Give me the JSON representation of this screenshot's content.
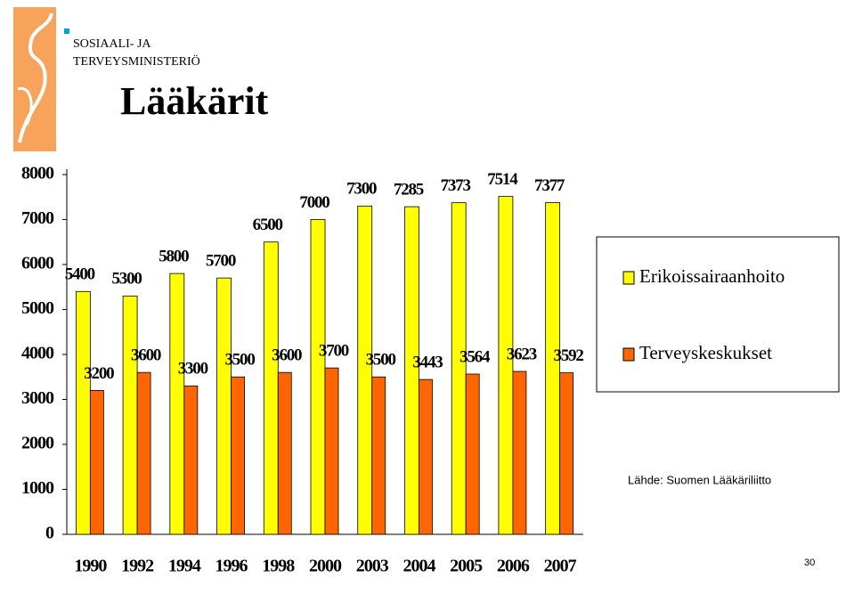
{
  "header": {
    "org_line1": "SOSIAALI- JA",
    "org_line2": "TERVEYSMINISTERIÖ"
  },
  "source": "Lähde: Suomen Lääkäriliitto",
  "page_number": "30",
  "chart_data": {
    "type": "bar",
    "title": "Lääkärit",
    "categories": [
      "1990",
      "1992",
      "1994",
      "1996",
      "1998",
      "2000",
      "2003",
      "2004",
      "2005",
      "2006",
      "2007"
    ],
    "series": [
      {
        "name": "Erikoissairaanhoito",
        "color": "#ffff00",
        "values": [
          5400,
          5300,
          5800,
          5700,
          6500,
          7000,
          7300,
          7285,
          7373,
          7514,
          7377
        ]
      },
      {
        "name": "Terveyskeskukset",
        "color": "#ff6600",
        "values": [
          3200,
          3600,
          3300,
          3500,
          3600,
          3700,
          3500,
          3443,
          3564,
          3623,
          3592
        ]
      }
    ],
    "ylim": [
      0,
      8000
    ],
    "yticks": [
      0,
      1000,
      2000,
      3000,
      4000,
      5000,
      6000,
      7000,
      8000
    ],
    "grid": false,
    "legend": "right"
  }
}
